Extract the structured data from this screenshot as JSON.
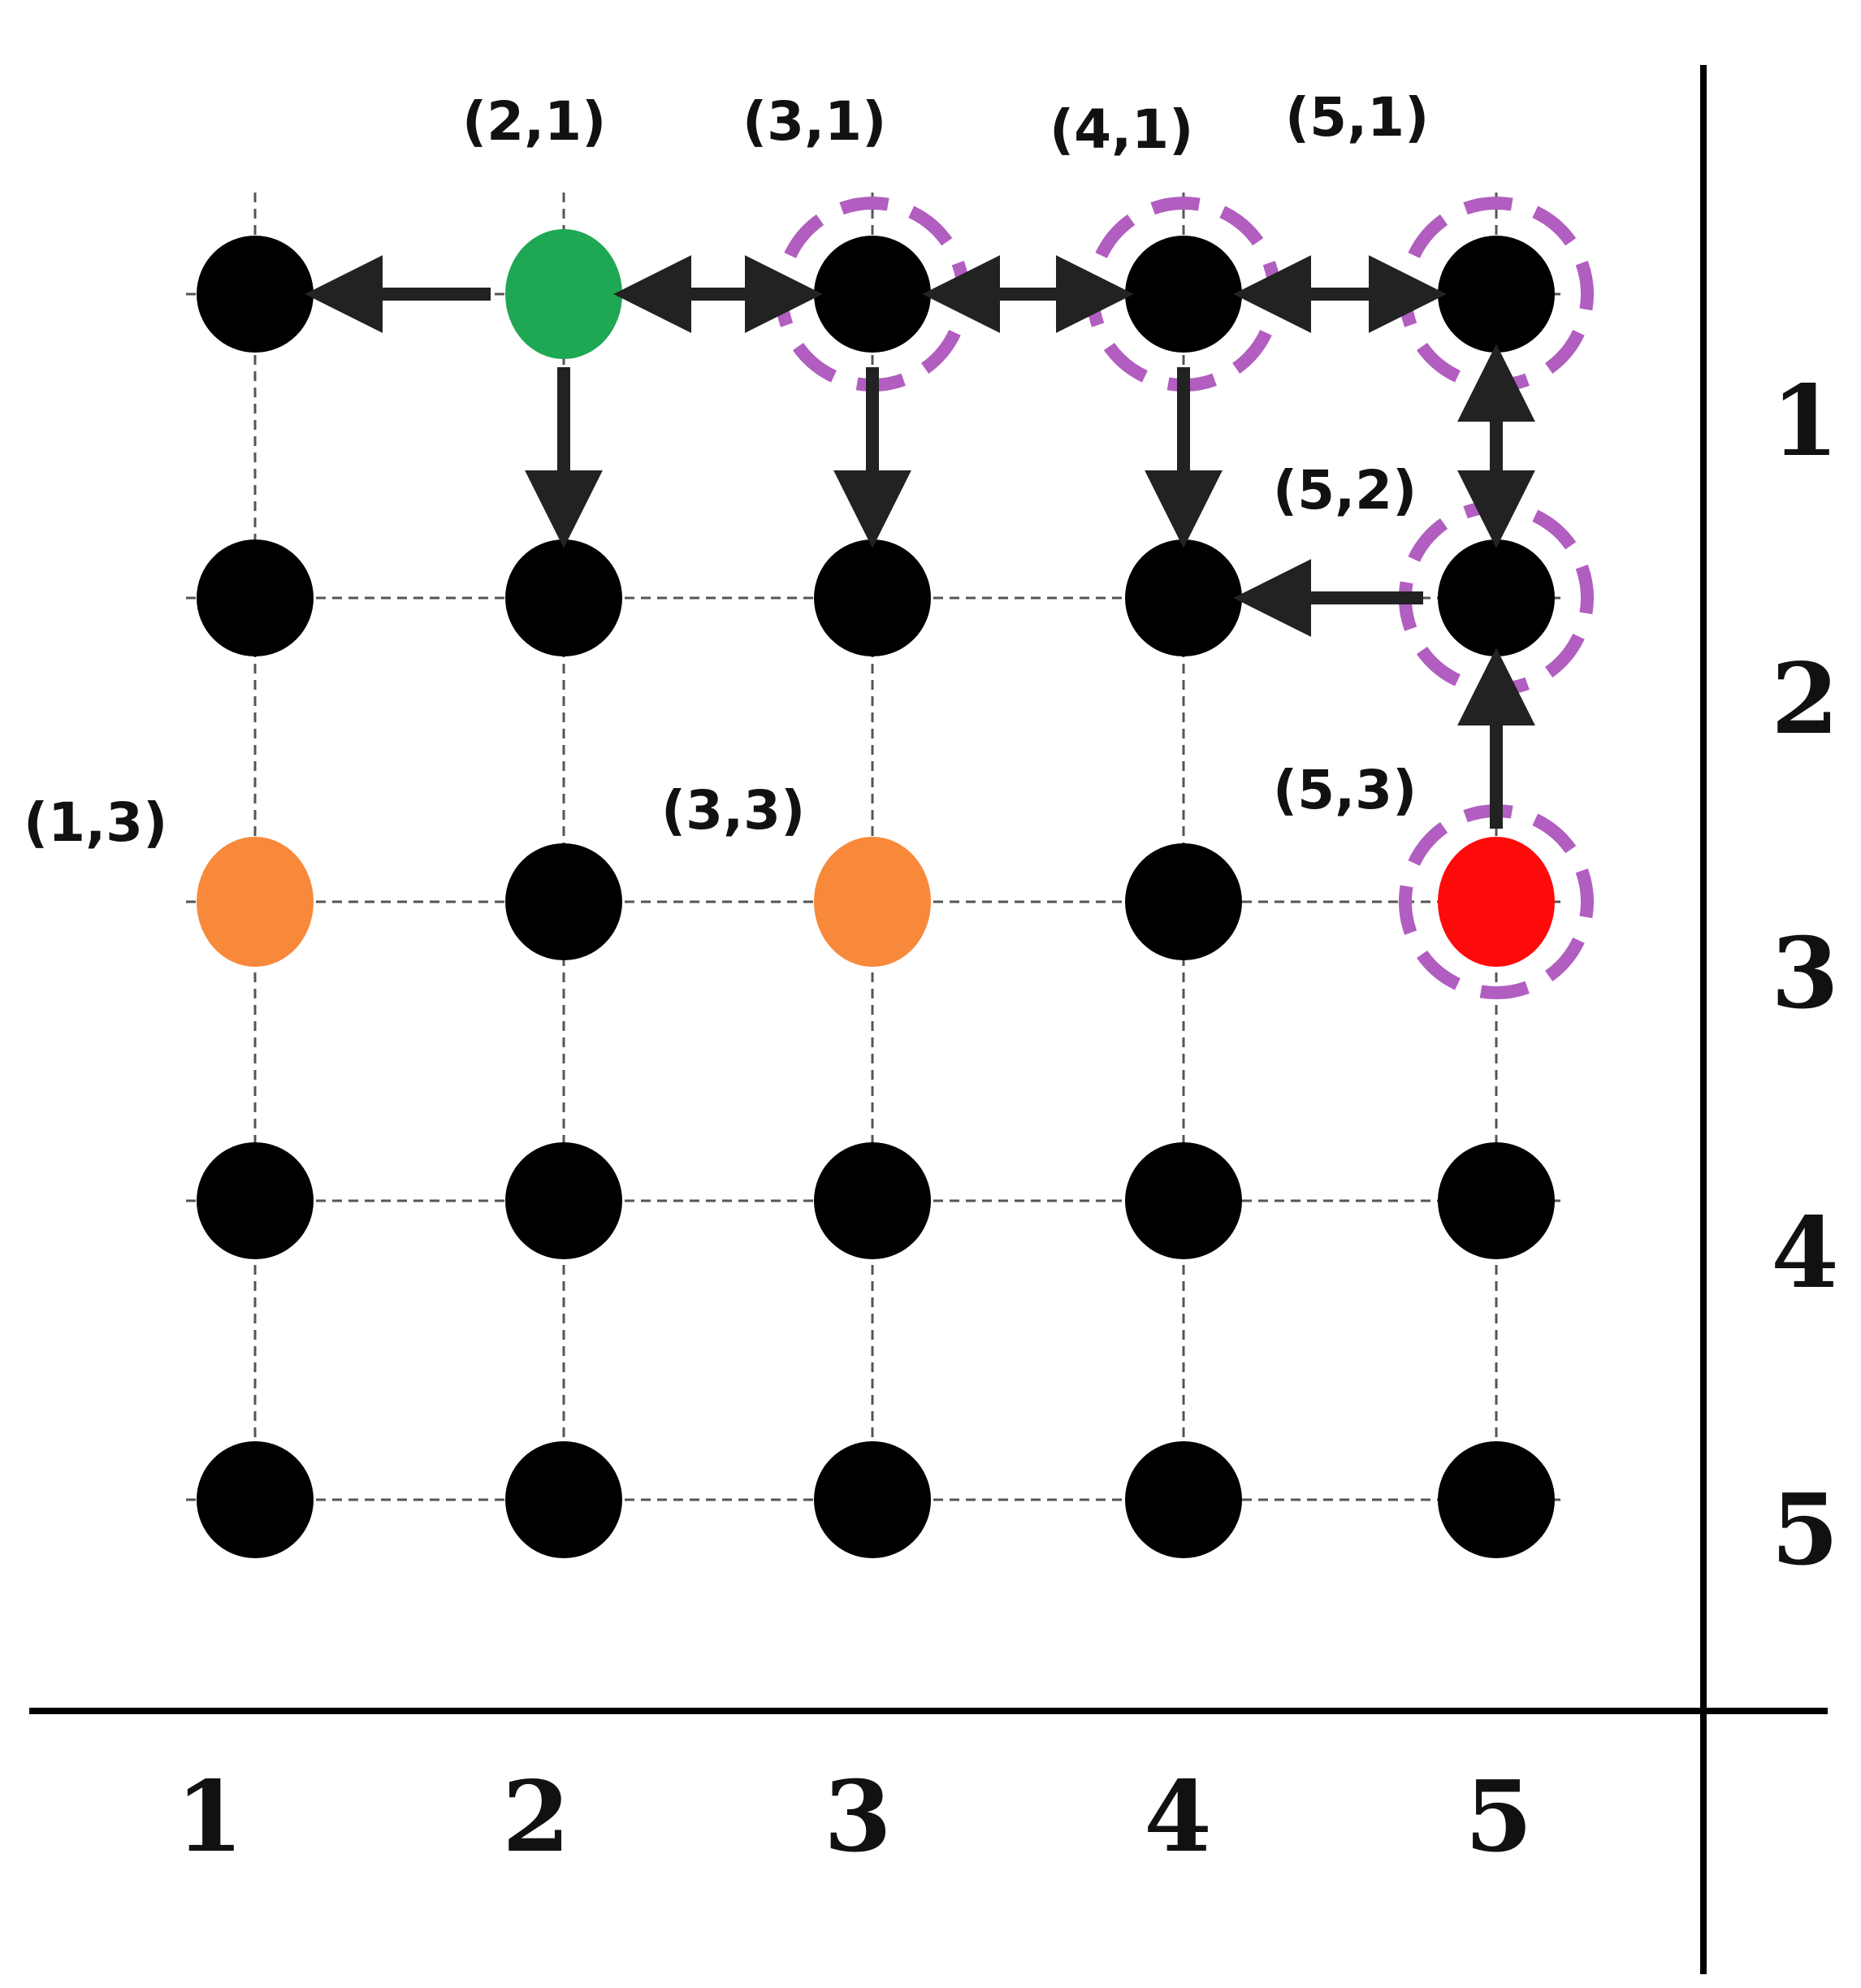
{
  "grid": {
    "columns": 5,
    "rows": 5,
    "x_axis_labels": [
      "1",
      "2",
      "3",
      "4",
      "5"
    ],
    "y_axis_labels": [
      "1",
      "2",
      "3",
      "4",
      "5"
    ]
  },
  "colors": {
    "node": "#000000",
    "start": "#1fa854",
    "target": "#f8893a",
    "end": "#ff0a0a",
    "highlight_ring": "#b15ec0",
    "arrow": "#222222",
    "grid_line": "#555555",
    "axis": "#000000"
  },
  "special_nodes": [
    {
      "col": 2,
      "row": 1,
      "role": "start"
    },
    {
      "col": 1,
      "row": 3,
      "role": "target"
    },
    {
      "col": 3,
      "row": 3,
      "role": "target"
    },
    {
      "col": 5,
      "row": 3,
      "role": "end"
    }
  ],
  "highlighted_nodes": [
    {
      "col": 3,
      "row": 1
    },
    {
      "col": 4,
      "row": 1
    },
    {
      "col": 5,
      "row": 1
    },
    {
      "col": 5,
      "row": 2
    },
    {
      "col": 5,
      "row": 3
    }
  ],
  "node_labels": [
    {
      "col": 2,
      "row": 1,
      "text": "(2,1)"
    },
    {
      "col": 3,
      "row": 1,
      "text": "(3,1)"
    },
    {
      "col": 4,
      "row": 1,
      "text": "(4,1)"
    },
    {
      "col": 5,
      "row": 1,
      "text": "(5,1)"
    },
    {
      "col": 5,
      "row": 2,
      "text": "(5,2)"
    },
    {
      "col": 5,
      "row": 3,
      "text": "(5,3)"
    },
    {
      "col": 1,
      "row": 3,
      "text": "(1,3)"
    },
    {
      "col": 3,
      "row": 3,
      "text": "(3,3)"
    }
  ],
  "arrows": [
    {
      "from": [
        2,
        1
      ],
      "to": [
        1,
        1
      ],
      "bidirectional": false
    },
    {
      "from": [
        2,
        1
      ],
      "to": [
        3,
        1
      ],
      "bidirectional": true
    },
    {
      "from": [
        3,
        1
      ],
      "to": [
        4,
        1
      ],
      "bidirectional": true
    },
    {
      "from": [
        4,
        1
      ],
      "to": [
        5,
        1
      ],
      "bidirectional": true
    },
    {
      "from": [
        2,
        1
      ],
      "to": [
        2,
        2
      ],
      "bidirectional": false
    },
    {
      "from": [
        3,
        1
      ],
      "to": [
        3,
        2
      ],
      "bidirectional": false
    },
    {
      "from": [
        4,
        1
      ],
      "to": [
        4,
        2
      ],
      "bidirectional": false
    },
    {
      "from": [
        5,
        2
      ],
      "to": [
        5,
        1
      ],
      "bidirectional": true
    },
    {
      "from": [
        5,
        2
      ],
      "to": [
        4,
        2
      ],
      "bidirectional": false
    },
    {
      "from": [
        5,
        3
      ],
      "to": [
        5,
        2
      ],
      "bidirectional": false
    }
  ]
}
